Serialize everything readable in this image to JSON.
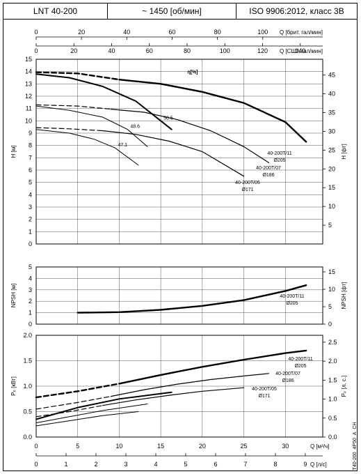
{
  "header": {
    "model": "LNT 40-200",
    "speed": "~ 1450 [об/мин]",
    "standard": "ISO 9906:2012, класс 3B"
  },
  "side_code": "T40-200_4P50_A_CH",
  "chart_data": {
    "type": "line",
    "flow_scales": [
      {
        "label": "Q [брит. гал/мин]",
        "ticks": [
          0,
          20,
          40,
          60,
          80,
          100
        ]
      },
      {
        "label": "Q [США гал/мин]",
        "ticks": [
          0,
          20,
          40,
          60,
          80,
          100,
          120,
          140
        ]
      },
      {
        "label": "Q [м³/ч]",
        "ticks": [
          0,
          5,
          10,
          15,
          20,
          25,
          30
        ]
      },
      {
        "label": "Q [л/с]",
        "ticks": [
          0,
          1,
          2,
          3,
          4,
          5,
          6,
          7,
          8,
          9
        ]
      }
    ],
    "panels": [
      {
        "id": "head",
        "ylabel": "H [м]",
        "ylim": [
          0,
          15
        ],
        "yticks": [
          0,
          1,
          2,
          3,
          4,
          5,
          6,
          7,
          8,
          9,
          10,
          11,
          12,
          13,
          14,
          15
        ],
        "y2label": "H [фт]",
        "y2ticks": [
          5,
          10,
          15,
          20,
          25,
          30,
          35,
          40,
          45
        ],
        "efficiency_label": "η[%]",
        "series": [
          {
            "name": "40-200T/11",
            "diameter": "Ø205",
            "dashed": [
              [
                0,
                13.95
              ],
              [
                5,
                13.85
              ],
              [
                10,
                13.35
              ]
            ],
            "solid": [
              [
                10,
                13.35
              ],
              [
                15,
                13.0
              ],
              [
                20,
                12.35
              ],
              [
                25,
                11.45
              ],
              [
                30,
                9.9
              ],
              [
                32.5,
                8.3
              ]
            ]
          },
          {
            "name": "40-200T/07",
            "diameter": "Ø186",
            "dashed": [
              [
                0,
                11.3
              ],
              [
                5,
                11.2
              ],
              [
                9,
                10.95
              ]
            ],
            "solid": [
              [
                9,
                10.95
              ],
              [
                13,
                10.7
              ],
              [
                17,
                10.1
              ],
              [
                21,
                9.2
              ],
              [
                25,
                7.9
              ],
              [
                28,
                6.6
              ]
            ]
          },
          {
            "name": "40-200T/05",
            "diameter": "Ø171",
            "dashed": [
              [
                0,
                9.45
              ],
              [
                4,
                9.35
              ],
              [
                8,
                9.2
              ]
            ],
            "solid": [
              [
                8,
                9.2
              ],
              [
                12,
                8.9
              ],
              [
                16,
                8.35
              ],
              [
                20,
                7.5
              ],
              [
                25,
                5.5
              ]
            ]
          }
        ],
        "iso_efficiency": [
          {
            "label": "50.5",
            "points": [
              [
                0,
                13.8
              ],
              [
                4,
                13.5
              ],
              [
                8,
                12.8
              ],
              [
                12,
                11.6
              ],
              [
                15,
                10.0
              ],
              [
                16.3,
                9.3
              ]
            ]
          },
          {
            "label": "48.6",
            "points": [
              [
                0,
                11.2
              ],
              [
                4,
                10.85
              ],
              [
                8,
                10.3
              ],
              [
                11,
                9.3
              ],
              [
                13.4,
                7.9
              ]
            ]
          },
          {
            "label": "47.1",
            "points": [
              [
                0,
                9.3
              ],
              [
                4,
                9.0
              ],
              [
                7,
                8.5
              ],
              [
                9.5,
                7.8
              ],
              [
                12.3,
                6.4
              ]
            ]
          }
        ]
      },
      {
        "id": "npsh",
        "ylabel": "NPSH [м]",
        "ylim": [
          0,
          5
        ],
        "yticks": [
          0,
          1,
          2,
          3,
          4,
          5
        ],
        "y2label": "NPSH [фт]",
        "y2ticks": [
          0,
          5,
          10,
          15
        ],
        "series": [
          {
            "name": "40-200T/11",
            "diameter": "Ø205",
            "points": [
              [
                5,
                1.0
              ],
              [
                10,
                1.05
              ],
              [
                15,
                1.25
              ],
              [
                20,
                1.6
              ],
              [
                25,
                2.1
              ],
              [
                30,
                2.9
              ],
              [
                32.5,
                3.4
              ]
            ]
          }
        ],
        "short_curve": [
          [
            10,
            1.05
          ],
          [
            13,
            1.15
          ],
          [
            16,
            1.35
          ]
        ]
      },
      {
        "id": "power",
        "ylabel": "Pₚ [кВт]",
        "ylim": [
          0,
          2.0
        ],
        "yticks": [
          0.0,
          0.5,
          1.0,
          1.5,
          2.0
        ],
        "y2label": "Pₚ [л. с.]",
        "y2ticks": [
          0.0,
          0.5,
          1.0,
          1.5,
          2.0,
          2.5
        ],
        "series": [
          {
            "name": "40-200T/11",
            "diameter": "Ø205",
            "dashed": [
              [
                0,
                0.78
              ],
              [
                5,
                0.9
              ],
              [
                10,
                1.05
              ]
            ],
            "solid": [
              [
                10,
                1.05
              ],
              [
                15,
                1.22
              ],
              [
                20,
                1.38
              ],
              [
                25,
                1.52
              ],
              [
                30,
                1.65
              ],
              [
                32.5,
                1.7
              ]
            ]
          },
          {
            "name": "40-200T/07",
            "diameter": "Ø186",
            "dashed": [
              [
                0,
                0.55
              ],
              [
                5,
                0.68
              ],
              [
                9,
                0.8
              ]
            ],
            "solid": [
              [
                9,
                0.8
              ],
              [
                13,
                0.93
              ],
              [
                17,
                1.04
              ],
              [
                21,
                1.13
              ],
              [
                25,
                1.2
              ],
              [
                28,
                1.25
              ]
            ]
          },
          {
            "name": "40-200T/05",
            "diameter": "Ø171",
            "dashed": [
              [
                0,
                0.4
              ],
              [
                4,
                0.5
              ],
              [
                8,
                0.62
              ]
            ],
            "solid": [
              [
                8,
                0.62
              ],
              [
                12,
                0.73
              ],
              [
                16,
                0.82
              ],
              [
                20,
                0.9
              ],
              [
                25,
                0.97
              ]
            ]
          }
        ],
        "iso_curves": [
          [
            [
              0,
              0.35
            ],
            [
              5,
              0.58
            ],
            [
              10,
              0.75
            ],
            [
              16.3,
              0.88
            ]
          ],
          [
            [
              0,
              0.28
            ],
            [
              4,
              0.4
            ],
            [
              8,
              0.52
            ],
            [
              13.4,
              0.65
            ]
          ],
          [
            [
              0,
              0.22
            ],
            [
              4,
              0.32
            ],
            [
              8,
              0.42
            ],
            [
              12.3,
              0.5
            ]
          ]
        ]
      }
    ]
  }
}
